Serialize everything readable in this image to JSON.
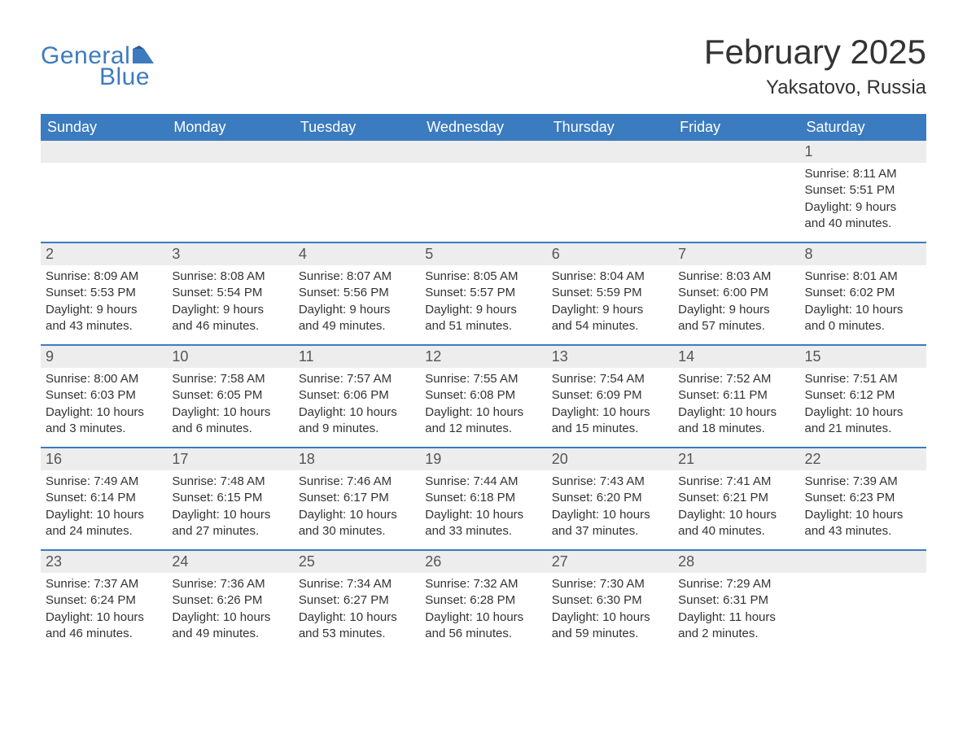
{
  "logo": {
    "text1": "General",
    "text2": "Blue"
  },
  "title": "February 2025",
  "location": "Yaksatovo, Russia",
  "colors": {
    "header_bg": "#3b7bbf",
    "header_text": "#ffffff",
    "daynum_bg": "#ededed",
    "body_text": "#333333",
    "logo_color": "#3d7bbf",
    "week_border": "#3b7bbf",
    "background": "#ffffff"
  },
  "fonts": {
    "title_size": 42,
    "location_size": 24,
    "dayheader_size": 18,
    "daynum_size": 18,
    "content_size": 15
  },
  "day_headers": [
    "Sunday",
    "Monday",
    "Tuesday",
    "Wednesday",
    "Thursday",
    "Friday",
    "Saturday"
  ],
  "weeks": [
    [
      null,
      null,
      null,
      null,
      null,
      null,
      {
        "n": "1",
        "sr": "Sunrise: 8:11 AM",
        "ss": "Sunset: 5:51 PM",
        "dl1": "Daylight: 9 hours",
        "dl2": "and 40 minutes."
      }
    ],
    [
      {
        "n": "2",
        "sr": "Sunrise: 8:09 AM",
        "ss": "Sunset: 5:53 PM",
        "dl1": "Daylight: 9 hours",
        "dl2": "and 43 minutes."
      },
      {
        "n": "3",
        "sr": "Sunrise: 8:08 AM",
        "ss": "Sunset: 5:54 PM",
        "dl1": "Daylight: 9 hours",
        "dl2": "and 46 minutes."
      },
      {
        "n": "4",
        "sr": "Sunrise: 8:07 AM",
        "ss": "Sunset: 5:56 PM",
        "dl1": "Daylight: 9 hours",
        "dl2": "and 49 minutes."
      },
      {
        "n": "5",
        "sr": "Sunrise: 8:05 AM",
        "ss": "Sunset: 5:57 PM",
        "dl1": "Daylight: 9 hours",
        "dl2": "and 51 minutes."
      },
      {
        "n": "6",
        "sr": "Sunrise: 8:04 AM",
        "ss": "Sunset: 5:59 PM",
        "dl1": "Daylight: 9 hours",
        "dl2": "and 54 minutes."
      },
      {
        "n": "7",
        "sr": "Sunrise: 8:03 AM",
        "ss": "Sunset: 6:00 PM",
        "dl1": "Daylight: 9 hours",
        "dl2": "and 57 minutes."
      },
      {
        "n": "8",
        "sr": "Sunrise: 8:01 AM",
        "ss": "Sunset: 6:02 PM",
        "dl1": "Daylight: 10 hours",
        "dl2": "and 0 minutes."
      }
    ],
    [
      {
        "n": "9",
        "sr": "Sunrise: 8:00 AM",
        "ss": "Sunset: 6:03 PM",
        "dl1": "Daylight: 10 hours",
        "dl2": "and 3 minutes."
      },
      {
        "n": "10",
        "sr": "Sunrise: 7:58 AM",
        "ss": "Sunset: 6:05 PM",
        "dl1": "Daylight: 10 hours",
        "dl2": "and 6 minutes."
      },
      {
        "n": "11",
        "sr": "Sunrise: 7:57 AM",
        "ss": "Sunset: 6:06 PM",
        "dl1": "Daylight: 10 hours",
        "dl2": "and 9 minutes."
      },
      {
        "n": "12",
        "sr": "Sunrise: 7:55 AM",
        "ss": "Sunset: 6:08 PM",
        "dl1": "Daylight: 10 hours",
        "dl2": "and 12 minutes."
      },
      {
        "n": "13",
        "sr": "Sunrise: 7:54 AM",
        "ss": "Sunset: 6:09 PM",
        "dl1": "Daylight: 10 hours",
        "dl2": "and 15 minutes."
      },
      {
        "n": "14",
        "sr": "Sunrise: 7:52 AM",
        "ss": "Sunset: 6:11 PM",
        "dl1": "Daylight: 10 hours",
        "dl2": "and 18 minutes."
      },
      {
        "n": "15",
        "sr": "Sunrise: 7:51 AM",
        "ss": "Sunset: 6:12 PM",
        "dl1": "Daylight: 10 hours",
        "dl2": "and 21 minutes."
      }
    ],
    [
      {
        "n": "16",
        "sr": "Sunrise: 7:49 AM",
        "ss": "Sunset: 6:14 PM",
        "dl1": "Daylight: 10 hours",
        "dl2": "and 24 minutes."
      },
      {
        "n": "17",
        "sr": "Sunrise: 7:48 AM",
        "ss": "Sunset: 6:15 PM",
        "dl1": "Daylight: 10 hours",
        "dl2": "and 27 minutes."
      },
      {
        "n": "18",
        "sr": "Sunrise: 7:46 AM",
        "ss": "Sunset: 6:17 PM",
        "dl1": "Daylight: 10 hours",
        "dl2": "and 30 minutes."
      },
      {
        "n": "19",
        "sr": "Sunrise: 7:44 AM",
        "ss": "Sunset: 6:18 PM",
        "dl1": "Daylight: 10 hours",
        "dl2": "and 33 minutes."
      },
      {
        "n": "20",
        "sr": "Sunrise: 7:43 AM",
        "ss": "Sunset: 6:20 PM",
        "dl1": "Daylight: 10 hours",
        "dl2": "and 37 minutes."
      },
      {
        "n": "21",
        "sr": "Sunrise: 7:41 AM",
        "ss": "Sunset: 6:21 PM",
        "dl1": "Daylight: 10 hours",
        "dl2": "and 40 minutes."
      },
      {
        "n": "22",
        "sr": "Sunrise: 7:39 AM",
        "ss": "Sunset: 6:23 PM",
        "dl1": "Daylight: 10 hours",
        "dl2": "and 43 minutes."
      }
    ],
    [
      {
        "n": "23",
        "sr": "Sunrise: 7:37 AM",
        "ss": "Sunset: 6:24 PM",
        "dl1": "Daylight: 10 hours",
        "dl2": "and 46 minutes."
      },
      {
        "n": "24",
        "sr": "Sunrise: 7:36 AM",
        "ss": "Sunset: 6:26 PM",
        "dl1": "Daylight: 10 hours",
        "dl2": "and 49 minutes."
      },
      {
        "n": "25",
        "sr": "Sunrise: 7:34 AM",
        "ss": "Sunset: 6:27 PM",
        "dl1": "Daylight: 10 hours",
        "dl2": "and 53 minutes."
      },
      {
        "n": "26",
        "sr": "Sunrise: 7:32 AM",
        "ss": "Sunset: 6:28 PM",
        "dl1": "Daylight: 10 hours",
        "dl2": "and 56 minutes."
      },
      {
        "n": "27",
        "sr": "Sunrise: 7:30 AM",
        "ss": "Sunset: 6:30 PM",
        "dl1": "Daylight: 10 hours",
        "dl2": "and 59 minutes."
      },
      {
        "n": "28",
        "sr": "Sunrise: 7:29 AM",
        "ss": "Sunset: 6:31 PM",
        "dl1": "Daylight: 11 hours",
        "dl2": "and 2 minutes."
      },
      null
    ]
  ]
}
